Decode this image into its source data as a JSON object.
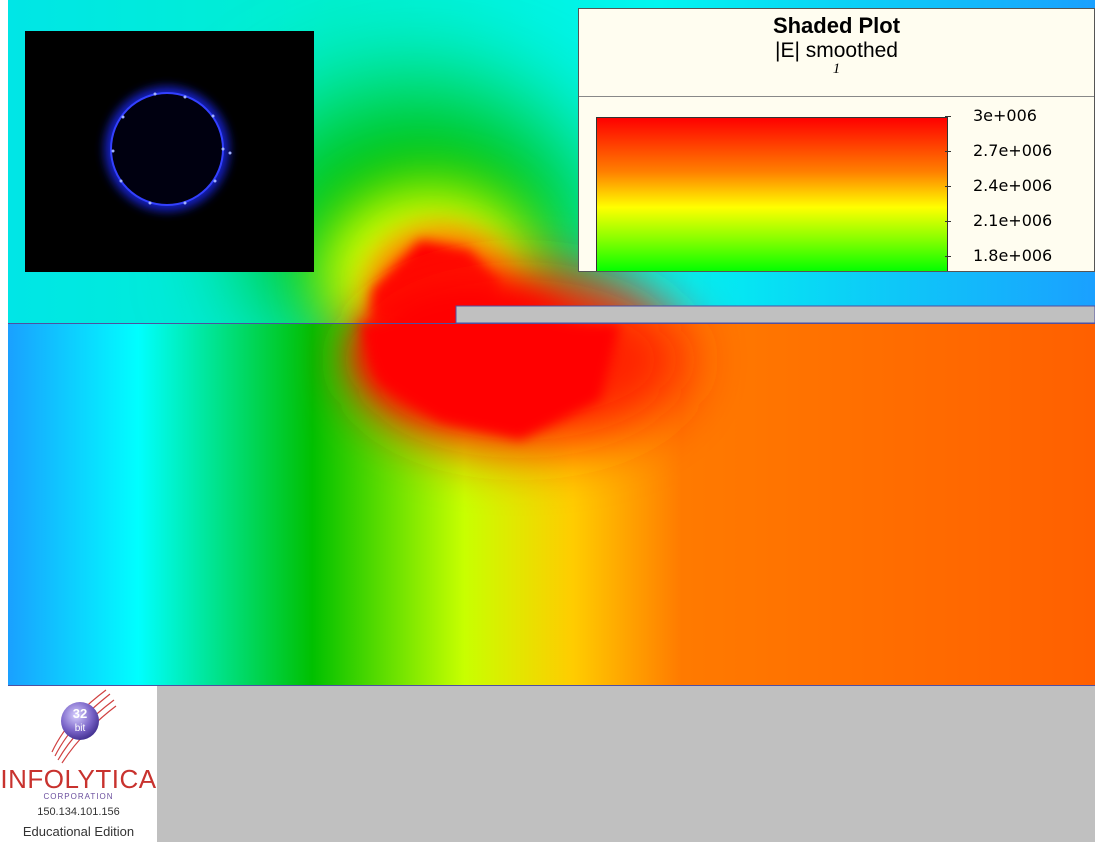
{
  "legend": {
    "title": "Shaded Plot",
    "subtitle": "|E| smoothed",
    "step": "1",
    "ticks": [
      "3e+006",
      "2.7e+006",
      "2.4e+006",
      "2.1e+006",
      "1.8e+006"
    ],
    "colors": [
      "#ff0000",
      "#ff8000",
      "#ffff00",
      "#80ff00",
      "#00ff00"
    ]
  },
  "logo": {
    "badge_top": "32",
    "badge_bottom": "bit",
    "brand": "INFOLYTICA",
    "corporation": "CORPORATION",
    "ip": "150.134.101.156",
    "edition": "Educational Edition"
  },
  "colors": {
    "conductor_gray": "#c0c0c0",
    "boundary_line": "#5050a0"
  }
}
